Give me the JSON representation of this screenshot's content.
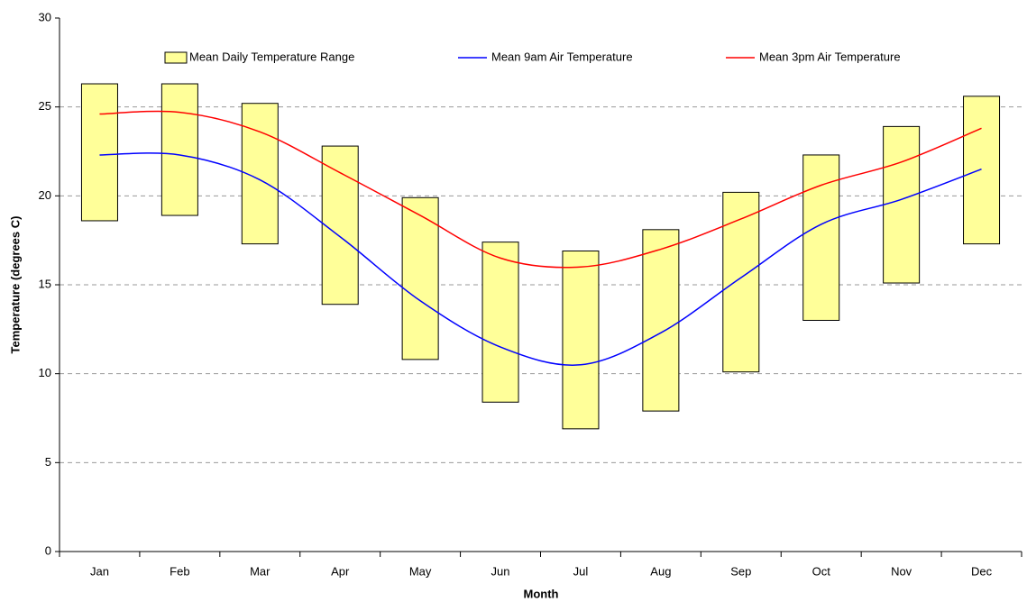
{
  "chart_data": {
    "type": "range-bar-line",
    "xlabel": "Month",
    "ylabel": "Temperature (degrees C)",
    "categories": [
      "Jan",
      "Feb",
      "Mar",
      "Apr",
      "May",
      "Jun",
      "Jul",
      "Aug",
      "Sep",
      "Oct",
      "Nov",
      "Dec"
    ],
    "range": {
      "name": "Mean Daily Temperature Range",
      "color": "#ffff99",
      "low": [
        18.6,
        18.9,
        17.3,
        13.9,
        10.8,
        8.4,
        6.9,
        7.9,
        10.1,
        13.0,
        15.1,
        17.3
      ],
      "high": [
        26.3,
        26.3,
        25.2,
        22.8,
        19.9,
        17.4,
        16.9,
        18.1,
        20.2,
        22.3,
        23.9,
        25.6
      ]
    },
    "series": [
      {
        "name": "Mean 9am Air Temperature",
        "color": "#0000ff",
        "values": [
          22.3,
          22.3,
          20.9,
          17.7,
          14.1,
          11.5,
          10.5,
          12.3,
          15.4,
          18.4,
          19.8,
          21.5
        ]
      },
      {
        "name": "Mean 3pm Air Temperature",
        "color": "#ff0000",
        "values": [
          24.6,
          24.7,
          23.6,
          21.3,
          18.9,
          16.5,
          16.0,
          17.0,
          18.7,
          20.6,
          21.9,
          23.8
        ]
      }
    ],
    "ylim": [
      0,
      30
    ],
    "yticks": [
      0,
      5,
      10,
      15,
      20,
      25,
      30
    ],
    "grid": true,
    "legend": "top"
  }
}
